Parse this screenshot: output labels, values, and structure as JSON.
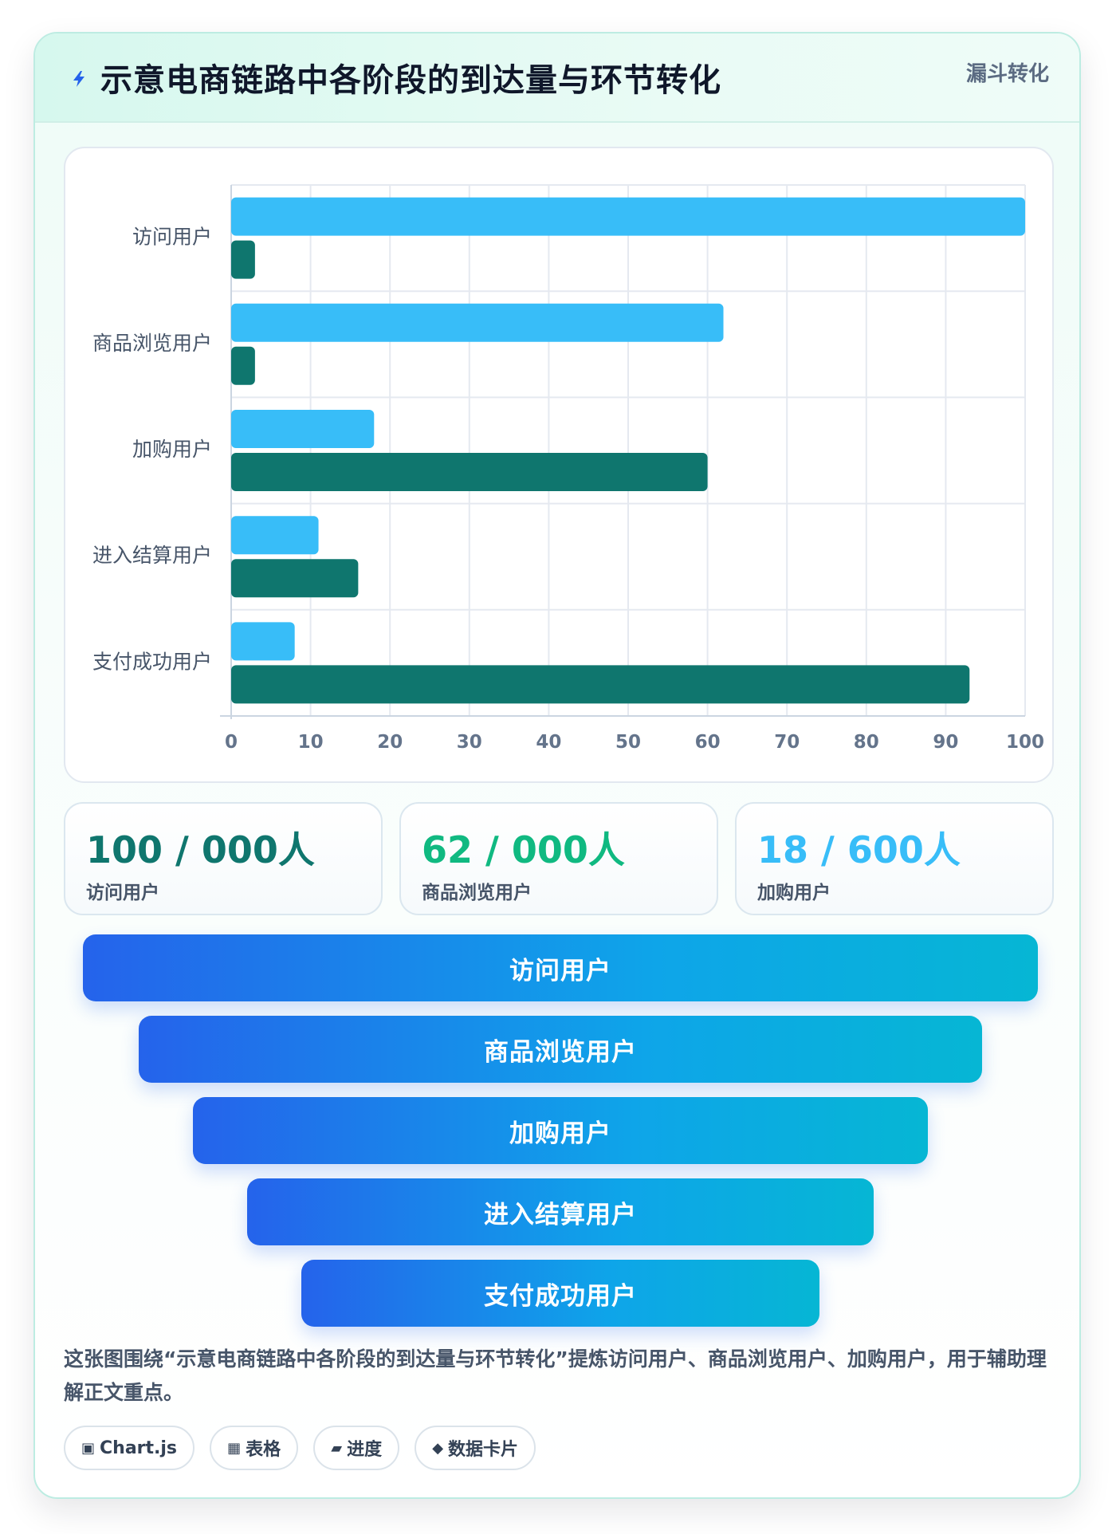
{
  "header": {
    "title": "示意电商链路中各阶段的到达量与环节转化",
    "badge": "漏斗转化"
  },
  "chart_data": {
    "type": "bar",
    "orientation": "horizontal",
    "categories": [
      "访问用户",
      "商品浏览用户",
      "加购用户",
      "进入结算用户",
      "支付成功用户"
    ],
    "series": [
      {
        "color": "#38bdf8",
        "values": [
          100,
          62,
          18,
          11,
          8
        ]
      },
      {
        "color": "#0f766e",
        "values": [
          3,
          3,
          60,
          16,
          93
        ]
      }
    ],
    "xlim": [
      0,
      100
    ],
    "xticks": [
      0,
      10,
      20,
      30,
      40,
      50,
      60,
      70,
      80,
      90,
      100
    ],
    "grid": true,
    "legend": "none"
  },
  "stats": [
    {
      "value": "100 / 000人",
      "label": "访问用户",
      "color": "#0f766e"
    },
    {
      "value": "62 / 000人",
      "label": "商品浏览用户",
      "color": "#10b981"
    },
    {
      "value": "18 / 600人",
      "label": "加购用户",
      "color": "#38bdf8"
    }
  ],
  "funnel": [
    {
      "label": "访问用户"
    },
    {
      "label": "商品浏览用户"
    },
    {
      "label": "加购用户"
    },
    {
      "label": "进入结算用户"
    },
    {
      "label": "支付成功用户"
    }
  ],
  "description": "这张图围绕“示意电商链路中各阶段的到达量与环节转化”提炼访问用户、商品浏览用户、加购用户，用于辅助理解正文重点。",
  "tags": [
    {
      "icon": "▣",
      "label": "Chart.js"
    },
    {
      "icon": "▦",
      "label": "表格"
    },
    {
      "icon": "▰",
      "label": "进度"
    },
    {
      "icon": "◆",
      "label": "数据卡片"
    }
  ],
  "colors": {
    "accent": "#0f766e",
    "bar_light": "#38bdf8",
    "funnel_start": "#2563eb",
    "funnel_end": "#06b6d4"
  }
}
